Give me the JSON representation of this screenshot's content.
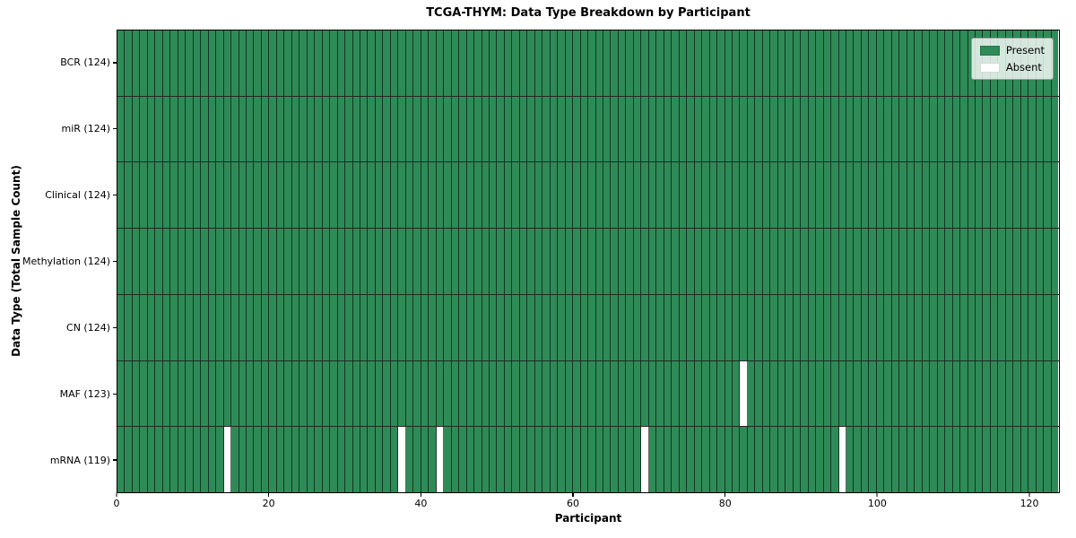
{
  "title": "TCGA-THYM: Data Type Breakdown by Participant",
  "chart_data": {
    "type": "heatmap",
    "title": "TCGA-THYM: Data Type Breakdown by Participant",
    "xlabel": "Participant",
    "ylabel": "Data Type (Total Sample Count)",
    "xlim": [
      0,
      124
    ],
    "n_participants": 124,
    "x_ticks": [
      0,
      20,
      40,
      60,
      80,
      100,
      120
    ],
    "grid": "cell-borders-on",
    "legend_position": "upper-right-inside",
    "rows": [
      {
        "label": "BCR (124)",
        "data_type": "BCR",
        "present_count": 124,
        "absent_participants": []
      },
      {
        "label": "miR (124)",
        "data_type": "miR",
        "present_count": 124,
        "absent_participants": []
      },
      {
        "label": "Clinical (124)",
        "data_type": "Clinical",
        "present_count": 124,
        "absent_participants": []
      },
      {
        "label": "Methylation (124)",
        "data_type": "Methylation",
        "present_count": 124,
        "absent_participants": []
      },
      {
        "label": "CN (124)",
        "data_type": "CN",
        "present_count": 124,
        "absent_participants": []
      },
      {
        "label": "MAF (123)",
        "data_type": "MAF",
        "present_count": 123,
        "absent_participants": [
          82
        ]
      },
      {
        "label": "mRNA (119)",
        "data_type": "mRNA",
        "present_count": 119,
        "absent_participants": [
          14,
          37,
          42,
          69,
          95
        ]
      }
    ],
    "legend": [
      {
        "label": "Present",
        "color": "#2e8b57"
      },
      {
        "label": "Absent",
        "color": "#ffffff"
      }
    ],
    "colors": {
      "present": "#2e8b57",
      "absent": "#ffffff",
      "cell_border": "rgba(0,0,0,0.6)",
      "text": "#000000",
      "background": "#ffffff"
    }
  }
}
